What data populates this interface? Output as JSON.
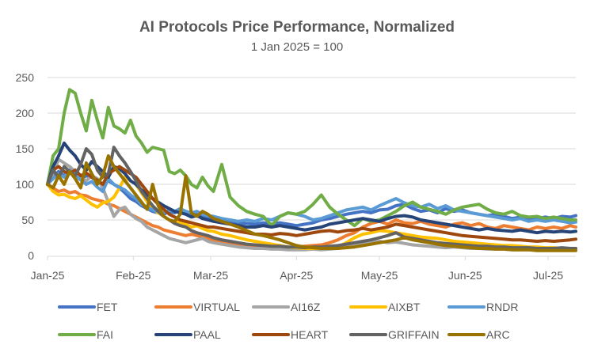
{
  "chart_data": {
    "type": "line",
    "title": "AI Protocols Price Performance, Normalized",
    "subtitle": "1 Jan 2025 = 100",
    "xlabel": "",
    "ylabel": "",
    "ylim": [
      0,
      250
    ],
    "yticks": [
      0,
      50,
      100,
      150,
      200,
      250
    ],
    "ytick_labels": [
      "0",
      "50",
      "100",
      "150",
      "200",
      "250"
    ],
    "xlim_days": [
      0,
      191
    ],
    "xticks_days": [
      0,
      31,
      59,
      90,
      120,
      151,
      181
    ],
    "xtick_labels": [
      "Jan-25",
      "Feb-25",
      "Mar-25",
      "Apr-25",
      "May-25",
      "Jun-25",
      "Jul-25"
    ],
    "x_unit": "days since 1 Jan 2025",
    "grid": true,
    "legend_position": "bottom",
    "x": [
      0,
      2,
      4,
      6,
      8,
      10,
      12,
      14,
      16,
      18,
      20,
      22,
      24,
      26,
      28,
      30,
      32,
      34,
      36,
      38,
      40,
      42,
      44,
      46,
      48,
      50,
      52,
      54,
      56,
      58,
      60,
      63,
      66,
      69,
      72,
      75,
      78,
      81,
      84,
      87,
      90,
      93,
      96,
      99,
      102,
      105,
      108,
      111,
      114,
      117,
      120,
      123,
      126,
      129,
      132,
      135,
      138,
      141,
      144,
      147,
      150,
      153,
      156,
      159,
      162,
      165,
      168,
      171,
      174,
      177,
      180,
      183,
      186,
      189,
      191
    ],
    "series": [
      {
        "name": "FET",
        "color": "#4472C4",
        "values": [
          100,
          110,
          118,
          112,
          120,
          115,
          108,
          112,
          110,
          104,
          98,
          105,
          100,
          95,
          88,
          80,
          76,
          70,
          66,
          62,
          60,
          58,
          62,
          60,
          64,
          62,
          58,
          60,
          56,
          54,
          52,
          50,
          48,
          46,
          45,
          44,
          46,
          44,
          46,
          44,
          42,
          44,
          46,
          50,
          52,
          55,
          58,
          60,
          62,
          60,
          64,
          65,
          70,
          72,
          66,
          62,
          64,
          60,
          66,
          62,
          64,
          60,
          58,
          56,
          58,
          55,
          52,
          54,
          50,
          52,
          54,
          52,
          55,
          54,
          56
        ]
      },
      {
        "name": "VIRTUAL",
        "color": "#ED7D31",
        "values": [
          100,
          95,
          90,
          92,
          88,
          90,
          85,
          84,
          80,
          78,
          76,
          72,
          70,
          66,
          62,
          58,
          54,
          50,
          46,
          42,
          40,
          36,
          34,
          32,
          30,
          28,
          30,
          28,
          26,
          24,
          22,
          20,
          18,
          16,
          15,
          14,
          13,
          12,
          12,
          11,
          12,
          13,
          14,
          15,
          18,
          22,
          28,
          32,
          40,
          45,
          48,
          44,
          50,
          46,
          45,
          48,
          44,
          42,
          40,
          44,
          46,
          42,
          45,
          40,
          38,
          42,
          40,
          38,
          36,
          40,
          38,
          40,
          38,
          42,
          40
        ]
      },
      {
        "name": "AI16Z",
        "color": "#A5A5A5",
        "values": [
          100,
          115,
          135,
          130,
          125,
          118,
          110,
          105,
          112,
          108,
          95,
          75,
          55,
          65,
          68,
          58,
          52,
          48,
          40,
          36,
          32,
          28,
          24,
          22,
          20,
          18,
          20,
          22,
          24,
          20,
          18,
          16,
          14,
          12,
          11,
          10,
          10,
          9,
          9,
          8,
          8,
          8,
          9,
          8,
          9,
          10,
          12,
          14,
          16,
          18,
          20,
          18,
          19,
          17,
          15,
          14,
          13,
          12,
          11,
          12,
          11,
          10,
          10,
          9,
          9,
          9,
          8,
          8,
          8,
          8,
          8,
          8,
          8,
          8,
          8
        ]
      },
      {
        "name": "AIXBT",
        "color": "#FFC000",
        "values": [
          100,
          90,
          85,
          86,
          82,
          80,
          84,
          78,
          72,
          68,
          74,
          76,
          82,
          95,
          110,
          105,
          100,
          88,
          76,
          66,
          60,
          55,
          50,
          48,
          46,
          44,
          40,
          42,
          38,
          35,
          34,
          30,
          28,
          25,
          22,
          20,
          18,
          16,
          14,
          12,
          11,
          10,
          10,
          10,
          11,
          12,
          18,
          25,
          30,
          32,
          35,
          34,
          32,
          30,
          28,
          26,
          25,
          24,
          22,
          20,
          19,
          18,
          17,
          16,
          15,
          14,
          14,
          13,
          12,
          12,
          11,
          11,
          10,
          10,
          10
        ]
      },
      {
        "name": "RNDR",
        "color": "#5B9BD5",
        "values": [
          100,
          108,
          115,
          110,
          120,
          112,
          106,
          100,
          104,
          96,
          90,
          108,
          100,
          96,
          92,
          85,
          80,
          72,
          68,
          64,
          62,
          60,
          64,
          62,
          66,
          62,
          60,
          62,
          58,
          56,
          55,
          52,
          50,
          48,
          50,
          48,
          52,
          50,
          55,
          60,
          58,
          55,
          50,
          52,
          56,
          60,
          64,
          66,
          68,
          64,
          70,
          75,
          80,
          74,
          70,
          68,
          72,
          66,
          70,
          64,
          62,
          60,
          58,
          56,
          54,
          52,
          50,
          52,
          48,
          50,
          48,
          50,
          48,
          46,
          47
        ]
      },
      {
        "name": "FAI",
        "color": "#70AD47",
        "values": [
          100,
          140,
          150,
          200,
          233,
          228,
          200,
          175,
          218,
          190,
          165,
          208,
          182,
          178,
          172,
          190,
          168,
          158,
          145,
          152,
          150,
          148,
          118,
          115,
          120,
          112,
          100,
          95,
          110,
          98,
          90,
          128,
          82,
          70,
          62,
          58,
          55,
          42,
          55,
          60,
          58,
          62,
          72,
          85,
          68,
          58,
          50,
          42,
          52,
          48,
          50,
          56,
          62,
          70,
          75,
          68,
          65,
          62,
          58,
          64,
          68,
          70,
          72,
          65,
          60,
          58,
          62,
          56,
          54,
          55,
          52,
          54,
          52,
          50,
          50
        ]
      },
      {
        "name": "PAAL",
        "color": "#264478",
        "values": [
          100,
          125,
          140,
          158,
          148,
          140,
          128,
          120,
          132,
          125,
          118,
          110,
          125,
          122,
          115,
          105,
          100,
          92,
          86,
          80,
          75,
          70,
          66,
          62,
          60,
          58,
          54,
          56,
          52,
          50,
          48,
          46,
          44,
          42,
          40,
          40,
          42,
          40,
          42,
          40,
          38,
          36,
          38,
          40,
          44,
          46,
          48,
          50,
          52,
          50,
          48,
          52,
          55,
          56,
          54,
          50,
          48,
          46,
          44,
          42,
          40,
          38,
          36,
          38,
          36,
          35,
          34,
          36,
          34,
          32,
          34,
          33,
          34,
          33,
          34
        ]
      },
      {
        "name": "HEART",
        "color": "#9E480E",
        "values": [
          100,
          120,
          125,
          118,
          115,
          120,
          112,
          116,
          110,
          106,
          100,
          115,
          120,
          125,
          120,
          115,
          110,
          100,
          90,
          80,
          72,
          65,
          58,
          54,
          50,
          48,
          46,
          44,
          42,
          40,
          40,
          38,
          36,
          34,
          32,
          30,
          30,
          29,
          31,
          30,
          28,
          30,
          32,
          34,
          35,
          33,
          35,
          36,
          38,
          36,
          38,
          40,
          44,
          42,
          40,
          38,
          36,
          34,
          32,
          30,
          28,
          27,
          26,
          25,
          24,
          23,
          22,
          22,
          21,
          20,
          21,
          20,
          21,
          22,
          23
        ]
      },
      {
        "name": "GRIFFAIN",
        "color": "#636363",
        "values": [
          100,
          120,
          110,
          125,
          118,
          112,
          128,
          150,
          142,
          120,
          110,
          115,
          152,
          140,
          130,
          118,
          105,
          90,
          80,
          70,
          62,
          55,
          50,
          45,
          42,
          40,
          35,
          32,
          30,
          28,
          25,
          22,
          20,
          18,
          16,
          15,
          14,
          13,
          13,
          12,
          12,
          11,
          12,
          12,
          13,
          14,
          16,
          18,
          20,
          22,
          25,
          28,
          32,
          26,
          24,
          22,
          20,
          18,
          17,
          16,
          15,
          14,
          13,
          13,
          12,
          12,
          11,
          11,
          11,
          10,
          10,
          10,
          11,
          10,
          10
        ]
      },
      {
        "name": "ARC",
        "color": "#997300",
        "values": [
          100,
          95,
          112,
          100,
          118,
          108,
          95,
          130,
          115,
          100,
          112,
          140,
          125,
          115,
          105,
          95,
          85,
          75,
          65,
          100,
          70,
          55,
          50,
          48,
          58,
          112,
          60,
          55,
          62,
          58,
          52,
          48,
          44,
          40,
          35,
          30,
          28,
          25,
          22,
          18,
          14,
          12,
          11,
          10,
          10,
          10,
          11,
          12,
          14,
          16,
          18,
          20,
          22,
          25,
          22,
          20,
          18,
          16,
          14,
          13,
          12,
          11,
          10,
          10,
          9,
          9,
          8,
          8,
          8,
          7,
          7,
          7,
          7,
          7,
          7
        ]
      }
    ]
  }
}
